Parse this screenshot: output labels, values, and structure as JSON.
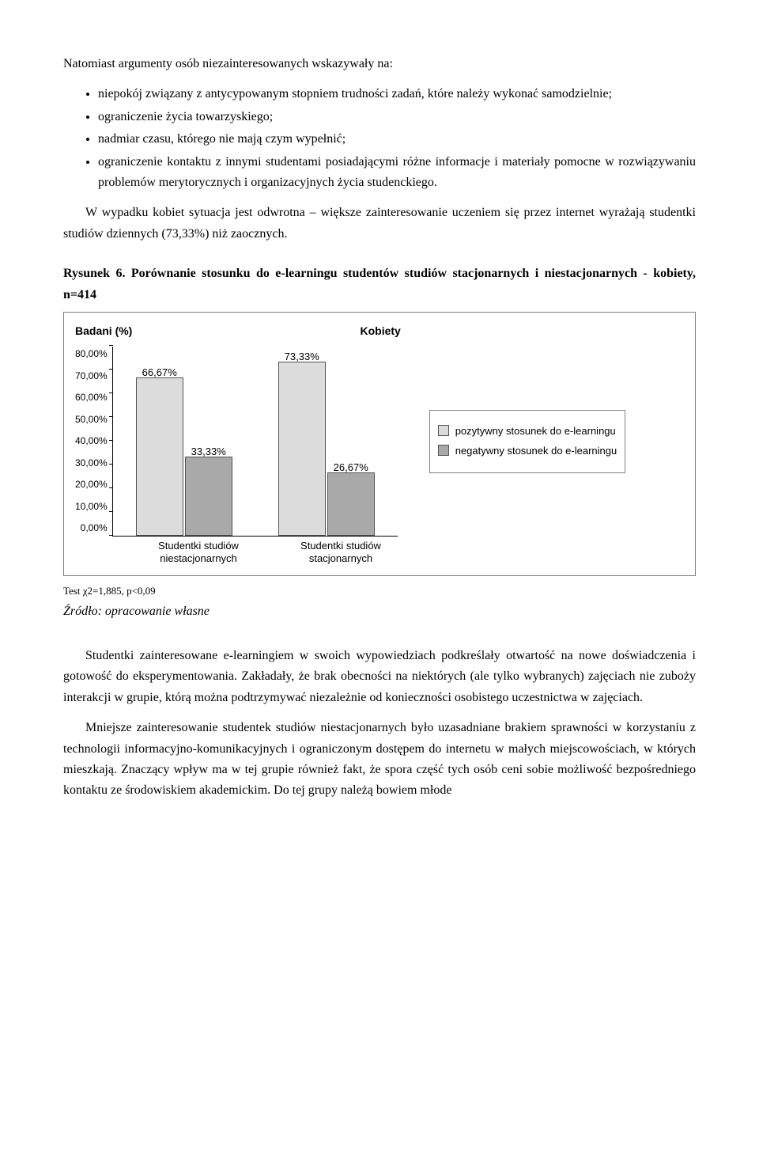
{
  "intro": "Natomiast argumenty osób niezainteresowanych wskazywały na:",
  "bullets": [
    "niepokój związany z antycypowanym stopniem trudności zadań, które należy wykonać samodzielnie;",
    "ograniczenie życia towarzyskiego;",
    "nadmiar czasu, którego nie mają czym wypełnić;",
    "ograniczenie kontaktu z innymi studentami posiadającymi różne informacje i materiały pomocne w rozwiązywaniu problemów merytorycznych i organizacyjnych życia studenckiego."
  ],
  "para1": "W wypadku kobiet sytuacja jest odwrotna – większe zainteresowanie uczeniem się przez internet wyrażają studentki studiów dziennych (73,33%) niż zaocznych.",
  "figure_caption": "Rysunek 6. Porównanie stosunku do e-learningu studentów studiów stacjonarnych i niestacjonarnych - kobiety, n=414",
  "chart": {
    "type": "grouped-bar",
    "yaxis_title": "Badani (%)",
    "chart_title": "Kobiety",
    "ymax_pct": 80,
    "ytick_labels": [
      "80,00%",
      "70,00%",
      "60,00%",
      "50,00%",
      "40,00%",
      "30,00%",
      "20,00%",
      "10,00%",
      "0,00%"
    ],
    "series_colors": {
      "pos": "#dcdcdc",
      "neg": "#a9a9a9"
    },
    "groups": [
      {
        "xlabel": "Studentki studiów niestacjonarnych",
        "bars": [
          {
            "label": "66,67%",
            "value": 66.67,
            "color": "#dcdcdc"
          },
          {
            "label": "33,33%",
            "value": 33.33,
            "color": "#a9a9a9"
          }
        ]
      },
      {
        "xlabel": "Studentki studiów stacjonarnych",
        "bars": [
          {
            "label": "73,33%",
            "value": 73.33,
            "color": "#dcdcdc"
          },
          {
            "label": "26,67%",
            "value": 26.67,
            "color": "#a9a9a9"
          }
        ]
      }
    ],
    "legend": [
      {
        "swatch": "#dcdcdc",
        "text": "pozytywny stosunek do e-learningu"
      },
      {
        "swatch": "#a9a9a9",
        "text": "negatywny stosunek do e-learningu"
      }
    ]
  },
  "stat_line": "Test χ2=1,885, p<0,09",
  "source": "Źródło: opracowanie własne",
  "bottom_paragraphs": [
    "Studentki zainteresowane e-learningiem w swoich wypowiedziach podkreślały otwartość na nowe doświadczenia i gotowość do eksperymentowania. Zakładały, że brak obecności na niektórych (ale tylko wybranych) zajęciach nie zuboży interakcji w grupie, którą można podtrzymywać niezależnie od konieczności osobistego uczestnictwa w zajęciach.",
    "Mniejsze zainteresowanie studentek studiów niestacjonarnych było uzasadniane brakiem sprawności w korzystaniu z technologii informacyjno-komunikacyjnych i ograniczonym dostępem do internetu w małych miejscowościach, w których mieszkają. Znaczący wpływ ma w tej grupie również fakt, że spora część tych osób ceni sobie możliwość bezpośredniego kontaktu ze środowiskiem akademickim. Do tej grupy należą bowiem młode"
  ]
}
